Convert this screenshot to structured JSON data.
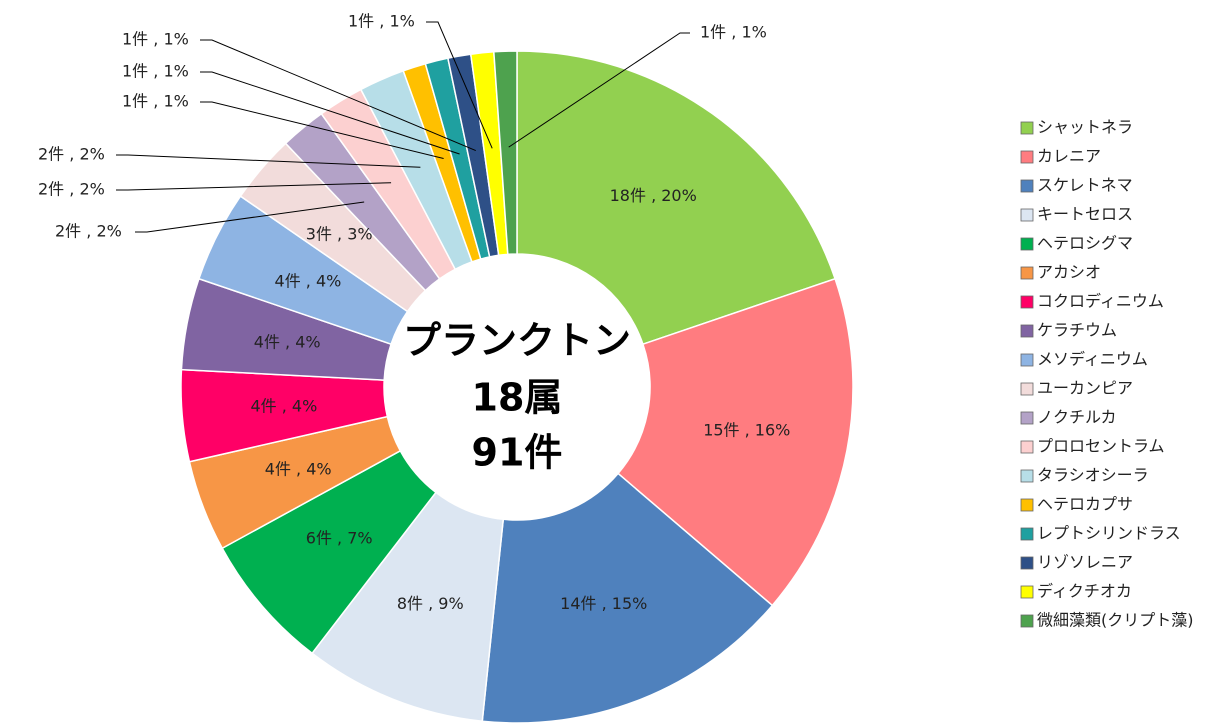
{
  "chart_data": {
    "type": "donut",
    "title": [
      "プランクトン",
      "18属",
      "91件"
    ],
    "categories": [
      "シャットネラ",
      "カレニア",
      "スケレトネマ",
      "キートセロス",
      "ヘテロシグマ",
      "アカシオ",
      "コクロディニウム",
      "ケラチウム",
      "メソディニウム",
      "ユーカンピア",
      "ノクチルカ",
      "プロロセントラム",
      "タラシオシーラ",
      "ヘテロカプサ",
      "レプトシリンドラス",
      "リゾソレニア",
      "ディクチオカ",
      "微細藻類(クリプト藻)"
    ],
    "values": [
      18,
      15,
      14,
      8,
      6,
      4,
      4,
      4,
      4,
      3,
      2,
      2,
      2,
      1,
      1,
      1,
      1,
      1
    ],
    "value_labels": [
      "18件 , 20%",
      "15件 , 16%",
      "14件 , 15%",
      "8件 , 9%",
      "6件 , 7%",
      "4件 , 4%",
      "4件 , 4%",
      "4件 , 4%",
      "4件 , 4%",
      "3件 , 3%",
      "2件 , 2%",
      "2件 , 2%",
      "2件 , 2%",
      "1件 , 1%",
      "1件 , 1%",
      "1件 , 1%",
      "1件 , 1%",
      "1件 , 1%"
    ],
    "colors": [
      "#92d050",
      "#ff7c80",
      "#4f81bd",
      "#dce6f2",
      "#00b050",
      "#f79646",
      "#ff0066",
      "#8064a2",
      "#8eb4e3",
      "#f2dcdb",
      "#b3a2c7",
      "#fcd0d0",
      "#b7dee8",
      "#ffc000",
      "#1fa0a0",
      "#2e5087",
      "#ffff00",
      "#4ea24e"
    ],
    "legend": "right"
  }
}
